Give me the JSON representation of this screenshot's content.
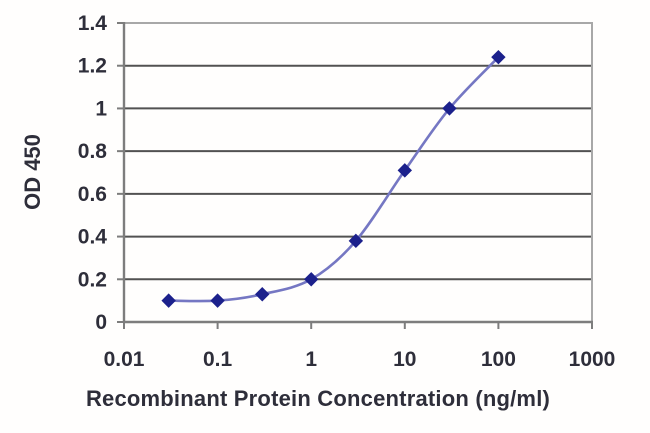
{
  "chart_data": {
    "type": "line",
    "title": "",
    "xlabel": "Recombinant Protein Concentration (ng/ml)",
    "ylabel": "OD 450",
    "x_scale": "log",
    "x": [
      0.03,
      0.1,
      0.3,
      1,
      3,
      10,
      30,
      100
    ],
    "values": [
      0.1,
      0.1,
      0.13,
      0.2,
      0.38,
      0.71,
      1.0,
      1.24
    ],
    "xlim": [
      0.01,
      1000
    ],
    "ylim": [
      0,
      1.4
    ],
    "x_ticks": [
      0.01,
      0.1,
      1,
      10,
      100,
      1000
    ],
    "x_tick_labels": [
      "0.01",
      "0.1",
      "1",
      "10",
      "100",
      "1000"
    ],
    "y_ticks": [
      0,
      0.2,
      0.4,
      0.6,
      0.8,
      1,
      1.2,
      1.4
    ],
    "y_tick_labels": [
      "0",
      "0.2",
      "0.4",
      "0.6",
      "0.8",
      "1",
      "1.2",
      "1.4"
    ],
    "grid": "horizontal",
    "legend": "none",
    "marker": "diamond",
    "colors": {
      "line": "#7577c3",
      "marker": "#1c218c",
      "grid": "#525252",
      "axis": "#7d7d7d",
      "frame_light": "#a8a8a8",
      "text": "#2e2e3a"
    },
    "layout": {
      "plot_left": 124,
      "plot_right": 592,
      "plot_top": 23,
      "plot_bottom": 322
    }
  }
}
